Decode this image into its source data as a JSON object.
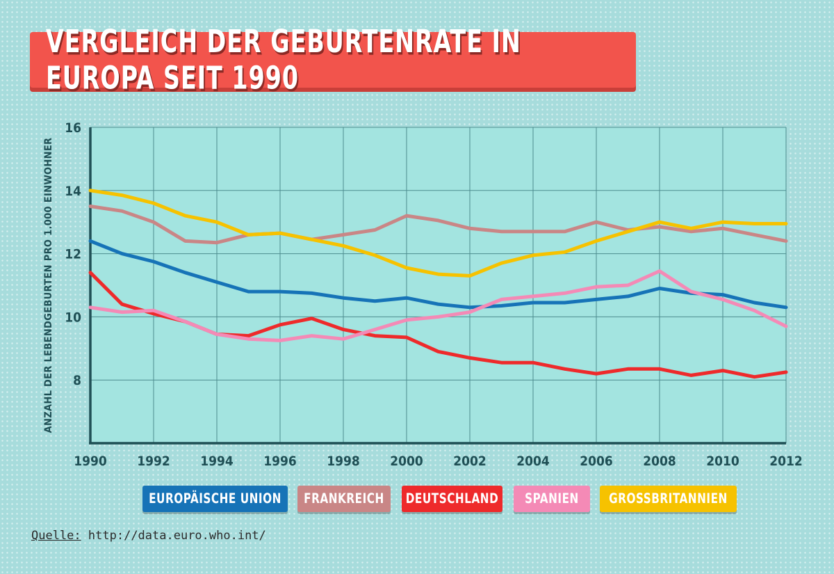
{
  "title": "VERGLEICH DER GEBURTENRATE IN EUROPA SEIT 1990",
  "source_label": "Quelle:",
  "source_url": "http://data.euro.who.int/",
  "chart_data": {
    "type": "line",
    "title": "VERGLEICH DER GEBURTENRATE IN EUROPA SEIT 1990",
    "xlabel": "",
    "ylabel": "ANZAHL DER LEBENDGEBURTEN PRO 1.000 EINWOHNER",
    "xlim": [
      1990,
      2012
    ],
    "ylim": [
      6,
      16
    ],
    "x_ticks": [
      "1990",
      "1992",
      "1994",
      "1996",
      "1998",
      "2000",
      "2002",
      "2004",
      "2006",
      "2008",
      "2010",
      "2012"
    ],
    "y_ticks": [
      "16",
      "14",
      "12",
      "10",
      "8"
    ],
    "x": [
      1990,
      1991,
      1992,
      1993,
      1994,
      1995,
      1996,
      1997,
      1998,
      1999,
      2000,
      2001,
      2002,
      2003,
      2004,
      2005,
      2006,
      2007,
      2008,
      2009,
      2010,
      2011,
      2012
    ],
    "series": [
      {
        "name": "EUROPÄISCHE UNION",
        "color": "#1673b7",
        "values": [
          12.4,
          12.0,
          11.75,
          11.4,
          11.1,
          10.8,
          10.8,
          10.75,
          10.6,
          10.5,
          10.6,
          10.4,
          10.3,
          10.35,
          10.45,
          10.45,
          10.55,
          10.65,
          10.9,
          10.75,
          10.7,
          10.45,
          10.3
        ]
      },
      {
        "name": "FRANKREICH",
        "color": "#c98686",
        "values": [
          13.5,
          13.35,
          13.0,
          12.4,
          12.35,
          12.6,
          12.65,
          12.45,
          12.6,
          12.75,
          13.2,
          13.05,
          12.8,
          12.7,
          12.7,
          12.7,
          13.0,
          12.75,
          12.85,
          12.7,
          12.8,
          12.6,
          12.4
        ]
      },
      {
        "name": "DEUTSCHLAND",
        "color": "#ee2a2b",
        "values": [
          11.4,
          10.4,
          10.1,
          9.85,
          9.45,
          9.4,
          9.75,
          9.95,
          9.6,
          9.4,
          9.35,
          8.9,
          8.7,
          8.55,
          8.55,
          8.35,
          8.2,
          8.35,
          8.35,
          8.15,
          8.3,
          8.1,
          8.25
        ]
      },
      {
        "name": "SPANIEN",
        "color": "#f48ab6",
        "values": [
          10.3,
          10.15,
          10.2,
          9.85,
          9.45,
          9.3,
          9.25,
          9.4,
          9.3,
          9.6,
          9.9,
          10.0,
          10.15,
          10.55,
          10.65,
          10.75,
          10.95,
          11.0,
          11.45,
          10.8,
          10.55,
          10.2,
          9.7
        ]
      },
      {
        "name": "GROSSBRITANNIEN",
        "color": "#f6c200",
        "values": [
          14.0,
          13.85,
          13.6,
          13.2,
          13.0,
          12.6,
          12.65,
          12.45,
          12.25,
          11.95,
          11.55,
          11.35,
          11.3,
          11.7,
          11.95,
          12.05,
          12.4,
          12.7,
          13.0,
          12.8,
          13.0,
          12.95,
          12.95
        ]
      }
    ]
  }
}
